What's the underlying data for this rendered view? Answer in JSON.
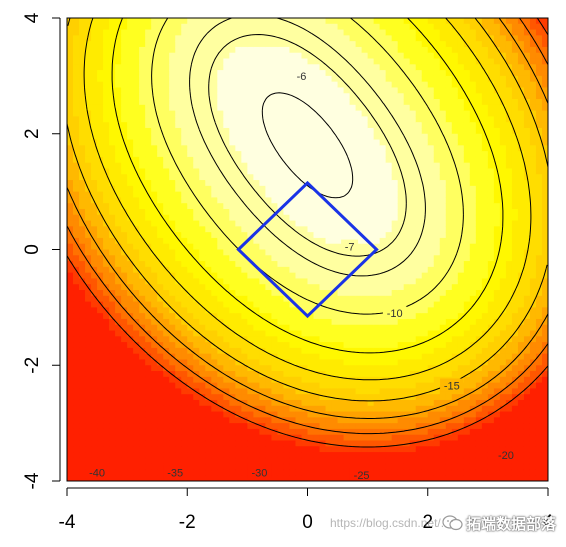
{
  "chart_data": {
    "type": "contour",
    "title": "",
    "xlabel": "",
    "ylabel": "",
    "xlim": [
      -4,
      4
    ],
    "ylim": [
      -4,
      4
    ],
    "x_ticks": [
      -4,
      -2,
      0,
      2,
      4
    ],
    "y_ticks": [
      -4,
      -2,
      0,
      2,
      4
    ],
    "x_tick_labels": [
      "-4",
      "-2",
      "0",
      "2",
      "4"
    ],
    "y_tick_labels": [
      "-4",
      "-2",
      "0",
      "2",
      "4"
    ],
    "grid": false,
    "colormap": [
      "#ff2000",
      "#ff8000",
      "#ffd000",
      "#ffff00",
      "#ffffe0"
    ],
    "maximum_point": [
      0,
      1.8
    ],
    "contours": [
      {
        "label": "-6",
        "label_at": [
          -0.1,
          3.0
        ]
      },
      {
        "label": "-7",
        "label_at": [
          0.7,
          0.05
        ]
      },
      {
        "label": "-10",
        "label_at": [
          1.45,
          -1.1
        ]
      },
      {
        "label": "-15",
        "label_at": [
          2.4,
          -2.35
        ]
      },
      {
        "label": "-20",
        "label_at": [
          3.3,
          -3.55
        ]
      },
      {
        "label": "-25",
        "label_at": [
          0.9,
          -3.9
        ]
      },
      {
        "label": "-30",
        "label_at": [
          -0.8,
          -3.85
        ]
      },
      {
        "label": "-35",
        "label_at": [
          -2.2,
          -3.85
        ]
      },
      {
        "label": "-40",
        "label_at": [
          -3.5,
          -3.85
        ]
      }
    ],
    "constraint_region": {
      "shape": "diamond",
      "color": "#1a33e6",
      "vertices": [
        [
          0,
          1.15
        ],
        [
          1.15,
          0
        ],
        [
          0,
          -1.15
        ],
        [
          -1.15,
          0
        ]
      ]
    }
  },
  "watermark": {
    "url_text": "https://blog.csdn.net/...",
    "brand_text": "拓端数据部落"
  }
}
